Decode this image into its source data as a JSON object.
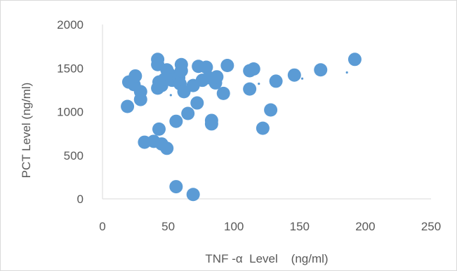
{
  "chart_data": {
    "type": "scatter",
    "xlabel": "TNF -α  Level    (ng/ml)",
    "ylabel": "PCT Level (ng/ml)",
    "xlim": [
      0,
      250
    ],
    "ylim": [
      0,
      2000
    ],
    "x_ticks": [
      "0",
      "50",
      "100",
      "150",
      "200",
      "250"
    ],
    "y_ticks": [
      "0",
      "500",
      "1000",
      "1500",
      "2000"
    ],
    "grid": false,
    "marker_color": "#5b9bd5",
    "series": [
      {
        "points": [
          {
            "x": 19,
            "y": 1060
          },
          {
            "x": 20,
            "y": 1340
          },
          {
            "x": 24,
            "y": 1310
          },
          {
            "x": 25,
            "y": 1410
          },
          {
            "x": 29,
            "y": 1230
          },
          {
            "x": 29,
            "y": 1140
          },
          {
            "x": 32,
            "y": 650
          },
          {
            "x": 39,
            "y": 660
          },
          {
            "x": 42,
            "y": 1600
          },
          {
            "x": 42,
            "y": 1540
          },
          {
            "x": 42,
            "y": 1270
          },
          {
            "x": 43,
            "y": 1340
          },
          {
            "x": 43,
            "y": 800
          },
          {
            "x": 45,
            "y": 1300
          },
          {
            "x": 45,
            "y": 630
          },
          {
            "x": 47,
            "y": 1370
          },
          {
            "x": 49,
            "y": 1480
          },
          {
            "x": 49,
            "y": 580
          },
          {
            "x": 51,
            "y": 1430
          },
          {
            "x": 53,
            "y": 1360
          },
          {
            "x": 56,
            "y": 890
          },
          {
            "x": 56,
            "y": 140
          },
          {
            "x": 58,
            "y": 1390
          },
          {
            "x": 59,
            "y": 1320
          },
          {
            "x": 60,
            "y": 1540
          },
          {
            "x": 60,
            "y": 1470
          },
          {
            "x": 62,
            "y": 1230
          },
          {
            "x": 65,
            "y": 980
          },
          {
            "x": 69,
            "y": 1300
          },
          {
            "x": 69,
            "y": 50
          },
          {
            "x": 72,
            "y": 1100
          },
          {
            "x": 73,
            "y": 1520
          },
          {
            "x": 76,
            "y": 1360
          },
          {
            "x": 79,
            "y": 1510
          },
          {
            "x": 81,
            "y": 1390
          },
          {
            "x": 83,
            "y": 900
          },
          {
            "x": 83,
            "y": 860
          },
          {
            "x": 86,
            "y": 1330
          },
          {
            "x": 87,
            "y": 1400
          },
          {
            "x": 92,
            "y": 1210
          },
          {
            "x": 95,
            "y": 1530
          },
          {
            "x": 112,
            "y": 1470
          },
          {
            "x": 112,
            "y": 1260
          },
          {
            "x": 115,
            "y": 1490
          },
          {
            "x": 122,
            "y": 810
          },
          {
            "x": 128,
            "y": 1020
          },
          {
            "x": 132,
            "y": 1350
          },
          {
            "x": 146,
            "y": 1420
          },
          {
            "x": 166,
            "y": 1480
          },
          {
            "x": 192,
            "y": 1600
          }
        ],
        "minor_points": [
          {
            "x": 52,
            "y": 1190
          },
          {
            "x": 119,
            "y": 1320
          },
          {
            "x": 152,
            "y": 1380
          },
          {
            "x": 186,
            "y": 1450
          }
        ]
      }
    ]
  }
}
